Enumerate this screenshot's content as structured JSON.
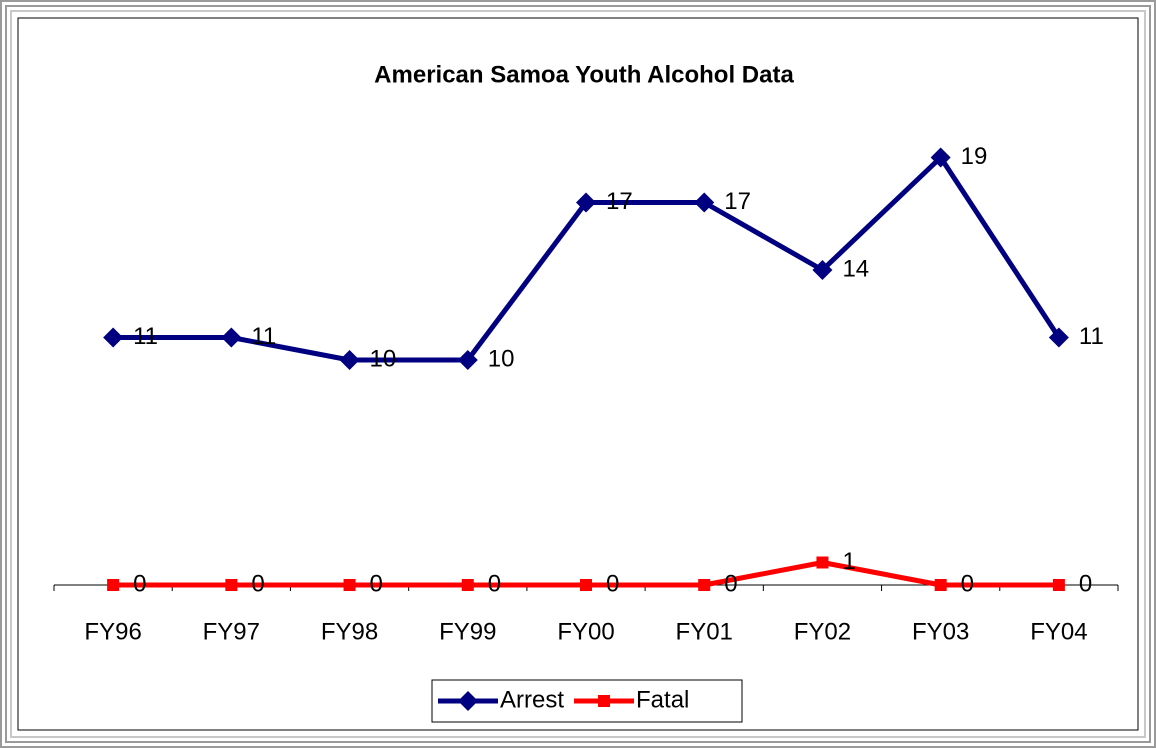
{
  "chart_data": {
    "type": "line",
    "title": "American Samoa Youth Alcohol Data",
    "categories": [
      "FY96",
      "FY97",
      "FY98",
      "FY99",
      "FY00",
      "FY01",
      "FY02",
      "FY03",
      "FY04"
    ],
    "series": [
      {
        "name": "Arrest",
        "color": "#000080",
        "marker": "diamond",
        "values": [
          11,
          11,
          10,
          10,
          17,
          17,
          14,
          19,
          11
        ]
      },
      {
        "name": "Fatal",
        "color": "#ff0000",
        "marker": "square",
        "values": [
          0,
          0,
          0,
          0,
          0,
          0,
          1,
          0,
          0
        ]
      }
    ],
    "ylim": [
      0,
      20
    ],
    "legend": "bottom"
  }
}
